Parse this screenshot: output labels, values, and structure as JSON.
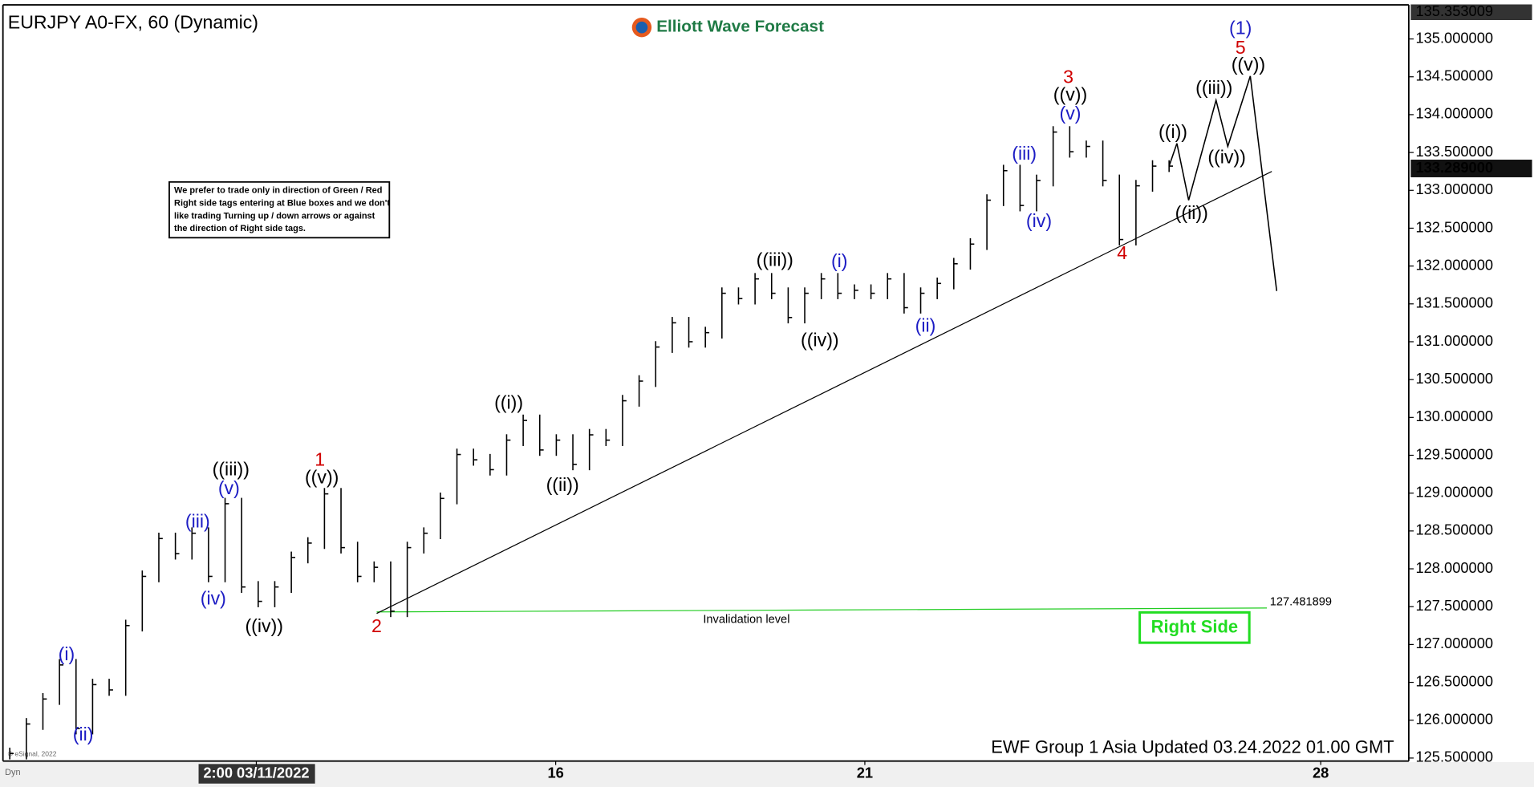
{
  "chart_data": {
    "type": "bar",
    "title": "EURJPY A0-FX, 60 (Dynamic)",
    "logo": "Elliott Wave Forecast",
    "note": [
      "We prefer to trade only in direction of Green / Red",
      "Right side tags entering at Blue boxes and we don't",
      "like trading Turning up / down arrows or against",
      "the direction of Right side tags."
    ],
    "footer": "EWF Group 1 Asia  Updated 03.24.2022 01.00 GMT",
    "copyright": "© eSignal, 2022",
    "corner": "Dyn",
    "right_side": "Right Side",
    "color": "#000000",
    "x_labels": [
      "2:00 03/11/2022",
      "16",
      "21",
      "28"
    ],
    "ylim": [
      125.46,
      135.45
    ],
    "yticks": [
      {
        "value": 125.5,
        "label": "125.500000"
      },
      {
        "value": 126,
        "label": "126.000000"
      },
      {
        "value": 126.5,
        "label": "126.500000"
      },
      {
        "value": 127,
        "label": "127.000000"
      },
      {
        "value": 127.5,
        "label": "127.500000"
      },
      {
        "value": 128,
        "label": "128.000000"
      },
      {
        "value": 128.5,
        "label": "128.500000"
      },
      {
        "value": 129,
        "label": "129.000000"
      },
      {
        "value": 129.5,
        "label": "129.500000"
      },
      {
        "value": 130,
        "label": "130.000000"
      },
      {
        "value": 130.5,
        "label": "130.500000"
      },
      {
        "value": 131,
        "label": "131.000000"
      },
      {
        "value": 131.5,
        "label": "131.500000"
      },
      {
        "value": 132,
        "label": "132.000000"
      },
      {
        "value": 132.5,
        "label": "132.500000"
      },
      {
        "value": 133,
        "label": "133.000000"
      },
      {
        "value": 133.5,
        "label": "133.500000"
      },
      {
        "value": 134,
        "label": "134.000000"
      },
      {
        "value": 134.5,
        "label": "134.500000"
      },
      {
        "value": 135,
        "label": "135.000000"
      }
    ],
    "top_price": 135.353009,
    "current_price": {
      "value": 133.289,
      "label": "133.289000"
    },
    "values": [
      125.56,
      125.95,
      126.28,
      126.73,
      125.89,
      126.47,
      126.4,
      127.25,
      127.9,
      128.4,
      128.2,
      128.47,
      127.9,
      128.86,
      127.76,
      127.57,
      127.76,
      128.15,
      128.34,
      128.99,
      128.28,
      127.9,
      128.02,
      127.44,
      128.28,
      128.47,
      128.93,
      129.51,
      129.44,
      129.31,
      129.7,
      129.96,
      129.57,
      129.7,
      129.38,
      129.77,
      129.7,
      130.22,
      130.48,
      130.93,
      131.25,
      131.0,
      131.12,
      131.64,
      131.57,
      131.83,
      131.64,
      131.32,
      131.64,
      131.83,
      131.64,
      131.68,
      131.64,
      131.83,
      131.45,
      131.64,
      131.77,
      132.03,
      132.29,
      132.87,
      133.26,
      132.8,
      133.13,
      133.77,
      133.51,
      133.58,
      133.13,
      132.35,
      133.06,
      133.32,
      133.32
    ],
    "projection": [
      133.62,
      132.87,
      134.19,
      133.58,
      134.51,
      131.67
    ],
    "trend_line": [
      127.41,
      133.25
    ],
    "invalidation": {
      "value": 127.481899,
      "text": "Invalidation level"
    },
    "wave_labels": [
      {
        "text": "(i)",
        "color": "#1c1cc4"
      },
      {
        "text": "(ii)",
        "color": "#1c1cc4"
      },
      {
        "text": "(iii)",
        "color": "#1c1cc4"
      },
      {
        "text": "(iv)",
        "color": "#1c1cc4"
      },
      {
        "text": "(v)",
        "color": "#1c1cc4"
      },
      {
        "text": "((iii))",
        "color": "#000000"
      },
      {
        "text": "((iv))",
        "color": "#000000"
      },
      {
        "text": "1",
        "color": "#d00000"
      },
      {
        "text": "((v))",
        "color": "#000000"
      },
      {
        "text": "2",
        "color": "#d00000"
      },
      {
        "text": "((i))",
        "color": "#000000"
      },
      {
        "text": "((ii))",
        "color": "#000000"
      },
      {
        "text": "((iii))",
        "color": "#000000"
      },
      {
        "text": "((iv))",
        "color": "#000000"
      },
      {
        "text": "(i)",
        "color": "#1c1cc4"
      },
      {
        "text": "(ii)",
        "color": "#1c1cc4"
      },
      {
        "text": "(iii)",
        "color": "#1c1cc4"
      },
      {
        "text": "(iv)",
        "color": "#1c1cc4"
      },
      {
        "text": "3",
        "color": "#d00000"
      },
      {
        "text": "((v))",
        "color": "#000000"
      },
      {
        "text": "(v)",
        "color": "#1c1cc4"
      },
      {
        "text": "4",
        "color": "#d00000"
      },
      {
        "text": "((i))",
        "color": "#000000"
      },
      {
        "text": "((ii))",
        "color": "#000000"
      },
      {
        "text": "((iii))",
        "color": "#000000"
      },
      {
        "text": "((iv))",
        "color": "#000000"
      },
      {
        "text": "(1)",
        "color": "#1c1cc4"
      },
      {
        "text": "5",
        "color": "#d00000"
      },
      {
        "text": "((v))",
        "color": "#000000"
      }
    ]
  }
}
